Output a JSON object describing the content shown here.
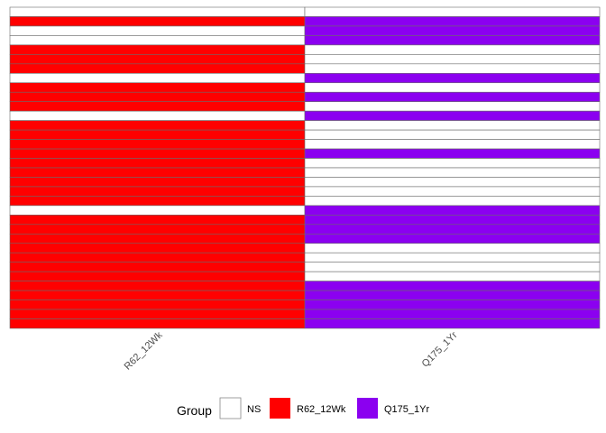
{
  "chart_data": {
    "type": "heatmap",
    "columns": [
      "R62_12Wk",
      "Q175_1Yr"
    ],
    "row_count": 34,
    "cells": [
      [
        "NS",
        "NS"
      ],
      [
        "R62_12Wk",
        "Q175_1Yr"
      ],
      [
        "NS",
        "Q175_1Yr"
      ],
      [
        "NS",
        "Q175_1Yr"
      ],
      [
        "R62_12Wk",
        "NS"
      ],
      [
        "R62_12Wk",
        "NS"
      ],
      [
        "R62_12Wk",
        "NS"
      ],
      [
        "NS",
        "Q175_1Yr"
      ],
      [
        "R62_12Wk",
        "NS"
      ],
      [
        "R62_12Wk",
        "Q175_1Yr"
      ],
      [
        "R62_12Wk",
        "NS"
      ],
      [
        "NS",
        "Q175_1Yr"
      ],
      [
        "R62_12Wk",
        "NS"
      ],
      [
        "R62_12Wk",
        "NS"
      ],
      [
        "R62_12Wk",
        "NS"
      ],
      [
        "R62_12Wk",
        "Q175_1Yr"
      ],
      [
        "R62_12Wk",
        "NS"
      ],
      [
        "R62_12Wk",
        "NS"
      ],
      [
        "R62_12Wk",
        "NS"
      ],
      [
        "R62_12Wk",
        "NS"
      ],
      [
        "R62_12Wk",
        "NS"
      ],
      [
        "NS",
        "Q175_1Yr"
      ],
      [
        "R62_12Wk",
        "Q175_1Yr"
      ],
      [
        "R62_12Wk",
        "Q175_1Yr"
      ],
      [
        "R62_12Wk",
        "Q175_1Yr"
      ],
      [
        "R62_12Wk",
        "NS"
      ],
      [
        "R62_12Wk",
        "NS"
      ],
      [
        "R62_12Wk",
        "NS"
      ],
      [
        "R62_12Wk",
        "NS"
      ],
      [
        "R62_12Wk",
        "Q175_1Yr"
      ],
      [
        "R62_12Wk",
        "Q175_1Yr"
      ],
      [
        "R62_12Wk",
        "Q175_1Yr"
      ],
      [
        "R62_12Wk",
        "Q175_1Yr"
      ],
      [
        "R62_12Wk",
        "Q175_1Yr"
      ]
    ],
    "colors": {
      "NS": "#FFFFFF",
      "R62_12Wk": "#FF0000",
      "Q175_1Yr": "#8B00F0"
    },
    "legend": {
      "title": "Group",
      "placement": "bottom",
      "entries": [
        "NS",
        "R62_12Wk",
        "Q175_1Yr"
      ]
    },
    "cell_border_color": "#6b6b6b"
  }
}
